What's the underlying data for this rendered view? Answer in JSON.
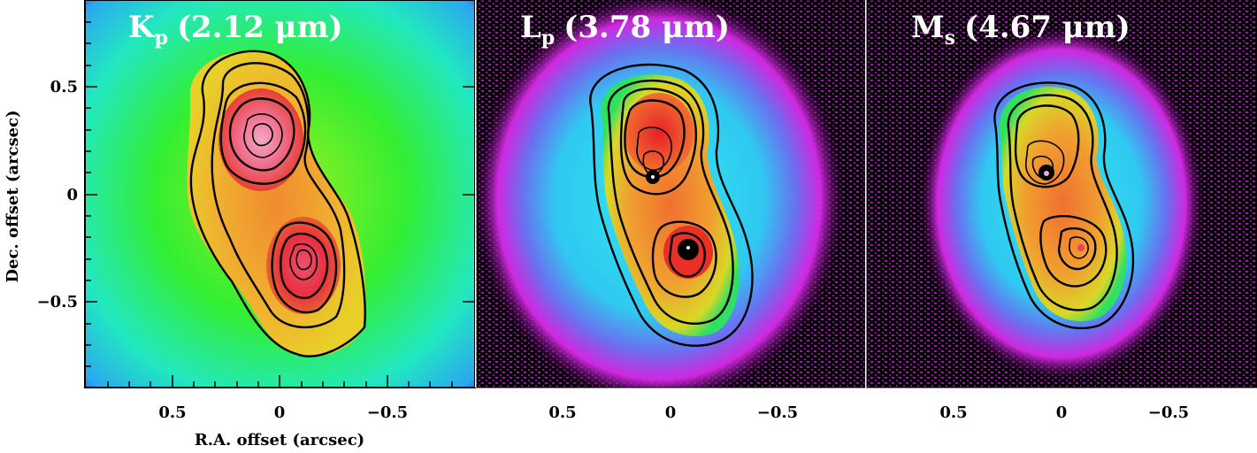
{
  "panels": [
    {
      "band": "K",
      "sub": "p",
      "wavelength": "(2.12 μm)"
    },
    {
      "band": "L",
      "sub": "p",
      "wavelength": "(3.78 μm)"
    },
    {
      "band": "M",
      "sub": "s",
      "wavelength": "(4.67 μm)"
    }
  ],
  "axes": {
    "xlabel": "R.A. offset (arcsec)",
    "ylabel": "Dec. offset (arcsec)",
    "xticks": [
      "0.5",
      "0",
      "−0.5"
    ],
    "yticks": [
      "0.5",
      "0",
      "−0.5"
    ]
  },
  "colors": {
    "k_bg": "#22ee22",
    "l_bg": "#000000",
    "m_bg": "#000000",
    "halo_magenta": "#e020e0",
    "halo_cyan": "#30e8f0",
    "core_orange": "#f0a030",
    "peak_red": "#e8304a",
    "peak_pink": "#f090b0"
  }
}
